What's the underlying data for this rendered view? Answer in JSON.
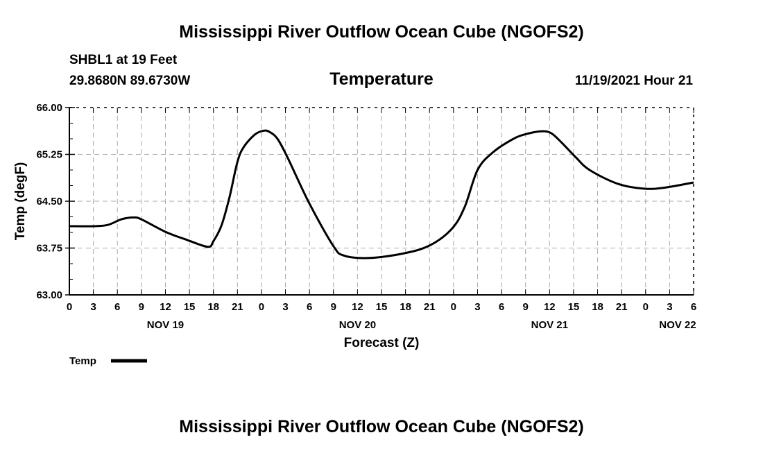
{
  "header": {
    "title": "Mississippi River Outflow Ocean Cube (NGOFS2)",
    "station": "SHBL1 at 19 Feet",
    "location": "29.8680N  89.6730W",
    "variable": "Temperature",
    "datetime": "11/19/2021 Hour 21",
    "footer_title": "Mississippi River Outflow Ocean Cube (NGOFS2)"
  },
  "chart_data": {
    "type": "line",
    "title": "Temperature",
    "xlabel": "Forecast (Z)",
    "ylabel": "Temp (degF)",
    "ylim": [
      63.0,
      66.0
    ],
    "xlim_hours": [
      0,
      78
    ],
    "yticks": [
      "63.00",
      "63.75",
      "64.50",
      "65.25",
      "66.00"
    ],
    "xtick_labels": [
      "0",
      "3",
      "6",
      "9",
      "12",
      "15",
      "18",
      "21",
      "0",
      "3",
      "6",
      "9",
      "12",
      "15",
      "18",
      "21",
      "0",
      "3",
      "6",
      "9",
      "12",
      "15",
      "18",
      "21",
      "0",
      "3",
      "6"
    ],
    "date_labels": [
      {
        "hour": 12,
        "label": "NOV 19"
      },
      {
        "hour": 36,
        "label": "NOV 20"
      },
      {
        "hour": 60,
        "label": "NOV 21"
      },
      {
        "hour": 76,
        "label": "NOV 22"
      }
    ],
    "grid": true,
    "legend": {
      "position": "bottom-left",
      "entries": [
        "Temp"
      ]
    },
    "series": [
      {
        "name": "Temp",
        "color": "#000000",
        "x": [
          0,
          3,
          4.8,
          6.5,
          8,
          9,
          12,
          14.7,
          17.3,
          18,
          19,
          20,
          21,
          21.8,
          23.2,
          24.3,
          25,
          26,
          27.3,
          30,
          33,
          34.3,
          37.3,
          41.6,
          45,
          47.8,
          49.4,
          51,
          52.9,
          55.5,
          57.2,
          59,
          60.2,
          61.5,
          63.3,
          65,
          68.5,
          71.9,
          74.5,
          78
        ],
        "values": [
          64.1,
          64.1,
          64.12,
          64.21,
          64.24,
          64.21,
          64.01,
          63.88,
          63.77,
          63.86,
          64.11,
          64.56,
          65.13,
          65.37,
          65.57,
          65.63,
          65.61,
          65.5,
          65.19,
          64.46,
          63.78,
          63.63,
          63.59,
          63.66,
          63.79,
          64.06,
          64.41,
          65.0,
          65.28,
          65.5,
          65.58,
          65.62,
          65.59,
          65.44,
          65.2,
          65.0,
          64.78,
          64.7,
          64.72,
          64.8
        ]
      }
    ]
  }
}
